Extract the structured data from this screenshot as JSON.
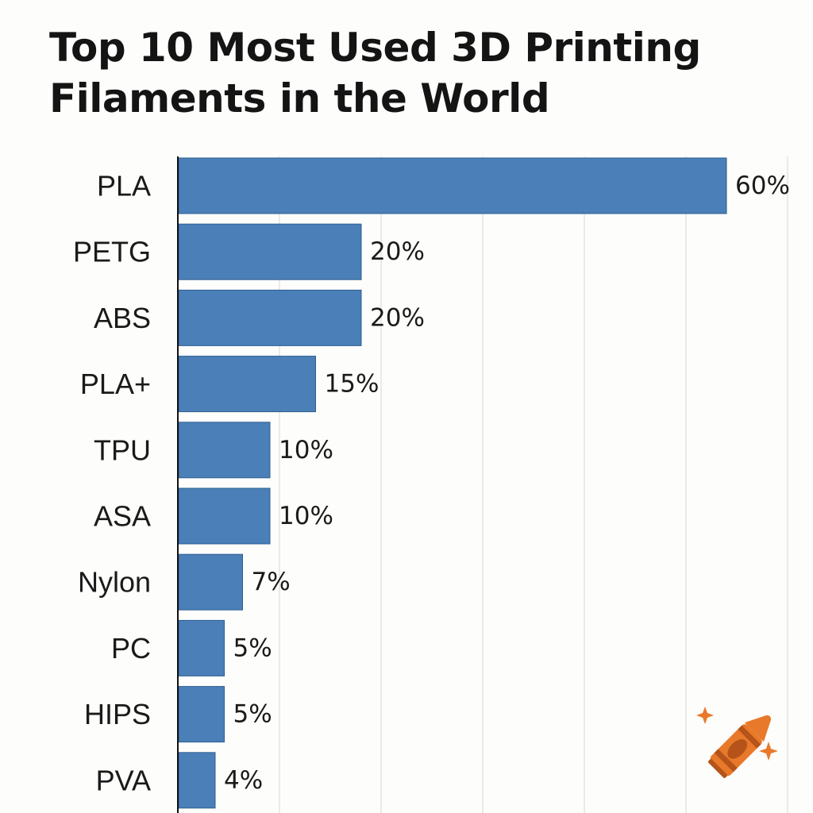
{
  "chart_data": {
    "type": "bar",
    "orientation": "horizontal",
    "title": "Top 10 Most Used 3D Printing Filaments in the World",
    "categories": [
      "PLA",
      "PETG",
      "ABS",
      "PLA+",
      "TPU",
      "ASA",
      "Nylon",
      "PC",
      "HIPS",
      "PVA"
    ],
    "values": [
      60,
      20,
      20,
      15,
      10,
      10,
      7,
      5,
      5,
      4
    ],
    "value_labels": [
      "60%",
      "20%",
      "20%",
      "15%",
      "10%",
      "10%",
      "7%",
      "5%",
      "5%",
      "4%"
    ],
    "xlabel": "",
    "ylabel": "",
    "grid": true,
    "legend": "none",
    "bar_color": "#4a7fb8"
  },
  "watermark": {
    "icon": "crayon-icon",
    "body_color": "#e8792a",
    "band_color": "#b5531a",
    "sparkle_color": "#e8792a"
  }
}
